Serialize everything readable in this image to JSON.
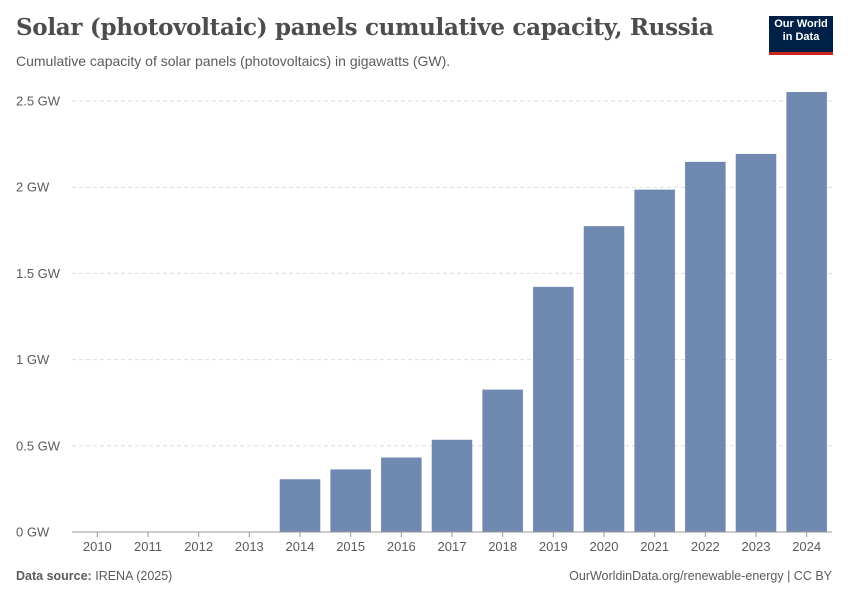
{
  "header": {
    "title": "Solar (photovoltaic) panels cumulative capacity, Russia",
    "subtitle": "Cumulative capacity of solar panels (photovoltaics) in gigawatts (GW)."
  },
  "logo": {
    "line1": "Our World",
    "line2": "in Data"
  },
  "footer": {
    "source_label": "Data source:",
    "source_value": "IRENA (2025)",
    "link": "OurWorldinData.org/renewable-energy | CC BY"
  },
  "colors": {
    "bar": "#6f89b0",
    "grid": "#dddddd",
    "axis": "#999999",
    "text": "#5b5b5b",
    "logo_bg": "#002147",
    "logo_accent": "#ce261e"
  },
  "chart_data": {
    "type": "bar",
    "categories": [
      "2010",
      "2011",
      "2012",
      "2013",
      "2014",
      "2015",
      "2016",
      "2017",
      "2018",
      "2019",
      "2020",
      "2021",
      "2022",
      "2023",
      "2024"
    ],
    "values": [
      0,
      0,
      0,
      0,
      0.306,
      0.363,
      0.432,
      0.535,
      0.826,
      1.422,
      1.774,
      1.986,
      2.147,
      2.193,
      2.552
    ],
    "title": "Solar (photovoltaic) panels cumulative capacity, Russia",
    "ylim": [
      0,
      2.5
    ],
    "yticks": [
      0,
      0.5,
      1,
      1.5,
      2,
      2.5
    ],
    "ytick_labels": [
      "0 GW",
      "0.5 GW",
      "1 GW",
      "1.5 GW",
      "2 GW",
      "2.5 GW"
    ],
    "grid": true,
    "legend": "none"
  }
}
